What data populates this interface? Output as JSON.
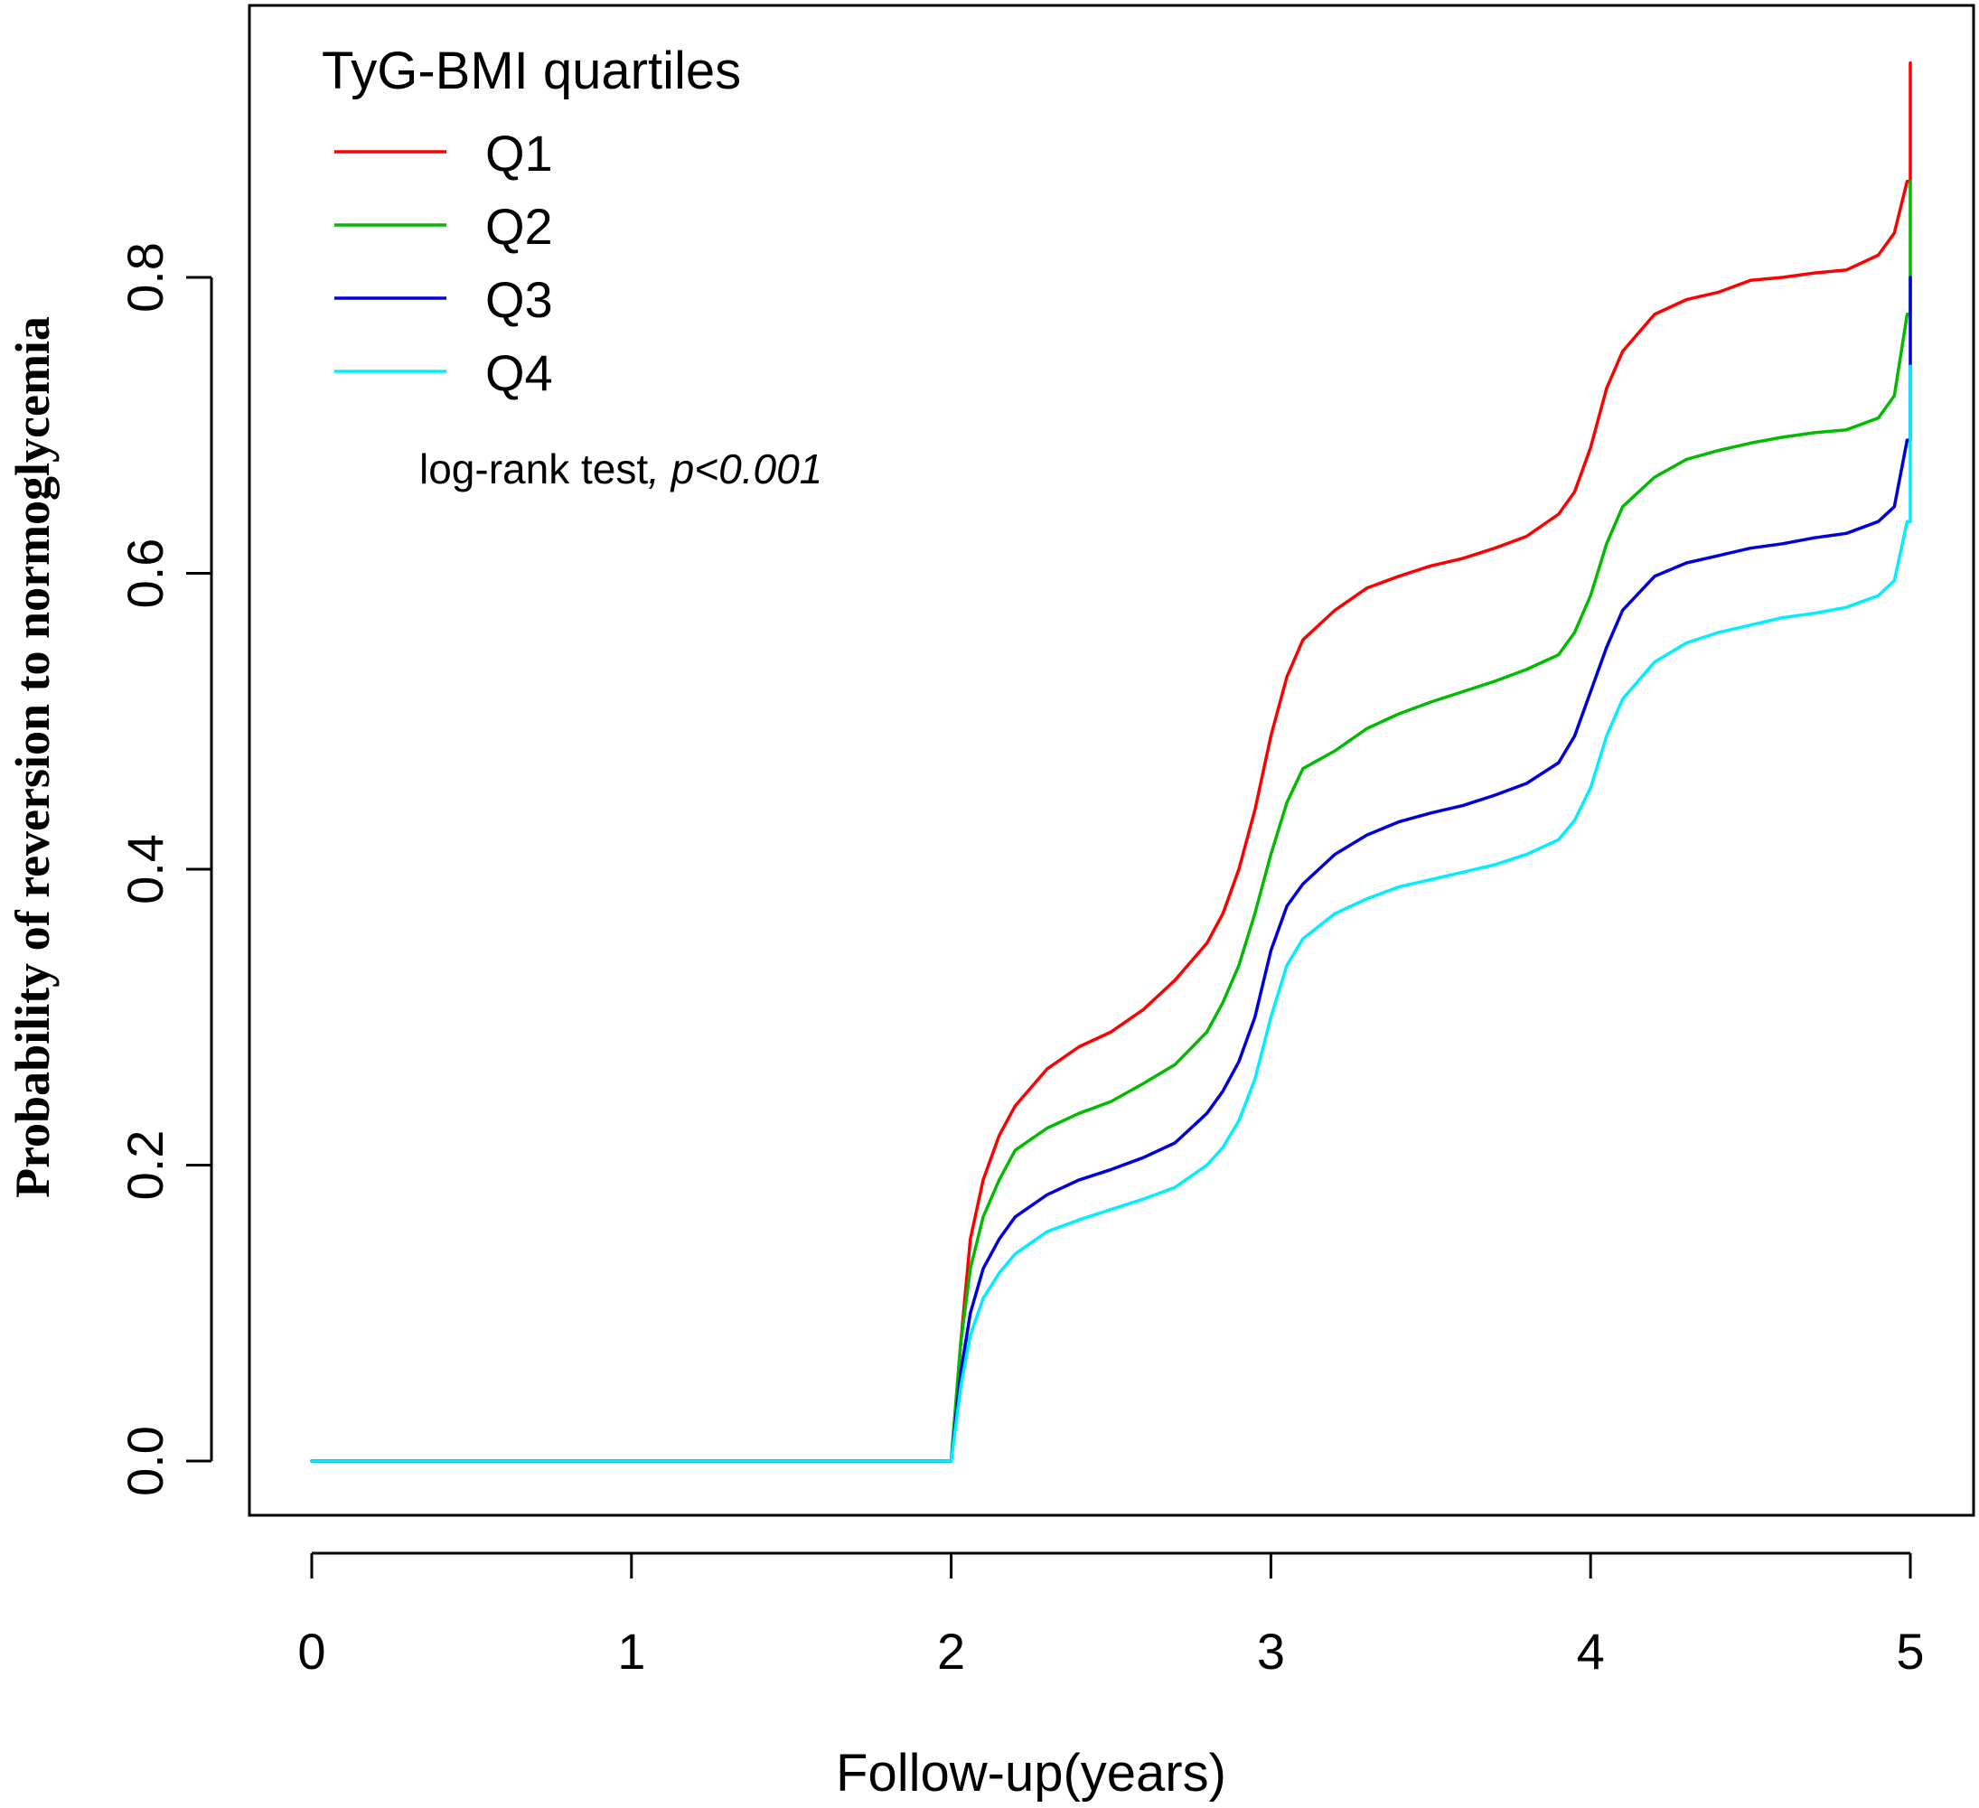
{
  "chart_data": {
    "type": "line",
    "title": "",
    "xlabel": "Follow-up(years)",
    "ylabel": "Probability of reversion to normoglycemia",
    "xlim": [
      0,
      5
    ],
    "ylim": [
      0,
      0.95
    ],
    "x_ticks": [
      "0",
      "1",
      "2",
      "3",
      "4",
      "5"
    ],
    "x_tick_values": [
      0,
      1,
      2,
      3,
      4,
      5
    ],
    "y_ticks": [
      "0.0",
      "0.2",
      "0.4",
      "0.6",
      "0.8"
    ],
    "y_tick_values": [
      0,
      0.2,
      0.4,
      0.6,
      0.8
    ],
    "grid": false,
    "legend": {
      "title": "TyG-BMI quartiles",
      "placement": "top-left"
    },
    "annotation": {
      "text": "log-rank test",
      "text_italic": ", p<0.001"
    },
    "series": [
      {
        "name": "Q1",
        "color": "#ff0000",
        "x": [
          0,
          1.99,
          2.0,
          2.03,
          2.06,
          2.1,
          2.15,
          2.2,
          2.3,
          2.4,
          2.5,
          2.6,
          2.7,
          2.8,
          2.85,
          2.9,
          2.95,
          3.0,
          3.05,
          3.1,
          3.2,
          3.3,
          3.4,
          3.5,
          3.6,
          3.7,
          3.8,
          3.9,
          3.95,
          4.0,
          4.05,
          4.1,
          4.2,
          4.3,
          4.4,
          4.5,
          4.6,
          4.7,
          4.8,
          4.9,
          4.95,
          4.99,
          5.0,
          5.0
        ],
        "y": [
          0,
          0,
          0.0,
          0.08,
          0.15,
          0.19,
          0.22,
          0.24,
          0.265,
          0.28,
          0.29,
          0.305,
          0.325,
          0.35,
          0.37,
          0.4,
          0.44,
          0.49,
          0.53,
          0.555,
          0.575,
          0.59,
          0.598,
          0.605,
          0.61,
          0.617,
          0.625,
          0.64,
          0.655,
          0.685,
          0.725,
          0.75,
          0.775,
          0.785,
          0.79,
          0.798,
          0.8,
          0.803,
          0.805,
          0.815,
          0.83,
          0.865,
          0.865,
          0.945
        ]
      },
      {
        "name": "Q2",
        "color": "#00bb00",
        "x": [
          0,
          1.99,
          2.0,
          2.03,
          2.06,
          2.1,
          2.15,
          2.2,
          2.3,
          2.4,
          2.5,
          2.6,
          2.7,
          2.8,
          2.85,
          2.9,
          2.95,
          3.0,
          3.05,
          3.1,
          3.2,
          3.3,
          3.4,
          3.5,
          3.6,
          3.7,
          3.8,
          3.9,
          3.95,
          4.0,
          4.05,
          4.1,
          4.2,
          4.3,
          4.4,
          4.5,
          4.6,
          4.7,
          4.8,
          4.9,
          4.95,
          4.99,
          5.0,
          5.0
        ],
        "y": [
          0,
          0,
          0.0,
          0.08,
          0.13,
          0.165,
          0.19,
          0.21,
          0.225,
          0.235,
          0.243,
          0.255,
          0.268,
          0.29,
          0.31,
          0.335,
          0.37,
          0.41,
          0.445,
          0.468,
          0.48,
          0.495,
          0.505,
          0.513,
          0.52,
          0.527,
          0.535,
          0.545,
          0.56,
          0.585,
          0.62,
          0.645,
          0.665,
          0.677,
          0.683,
          0.688,
          0.692,
          0.695,
          0.697,
          0.705,
          0.72,
          0.775,
          0.775,
          0.865
        ]
      },
      {
        "name": "Q3",
        "color": "#0000dd",
        "x": [
          0,
          1.99,
          2.0,
          2.03,
          2.06,
          2.1,
          2.15,
          2.2,
          2.3,
          2.4,
          2.5,
          2.6,
          2.7,
          2.8,
          2.85,
          2.9,
          2.95,
          3.0,
          3.05,
          3.1,
          3.2,
          3.3,
          3.4,
          3.5,
          3.6,
          3.7,
          3.8,
          3.9,
          3.95,
          4.0,
          4.05,
          4.1,
          4.2,
          4.3,
          4.4,
          4.5,
          4.6,
          4.7,
          4.8,
          4.9,
          4.95,
          4.99,
          5.0,
          5.0
        ],
        "y": [
          0,
          0,
          0.0,
          0.06,
          0.1,
          0.13,
          0.15,
          0.165,
          0.18,
          0.19,
          0.197,
          0.205,
          0.215,
          0.235,
          0.25,
          0.27,
          0.3,
          0.345,
          0.375,
          0.39,
          0.41,
          0.423,
          0.432,
          0.438,
          0.443,
          0.45,
          0.458,
          0.472,
          0.49,
          0.52,
          0.55,
          0.575,
          0.598,
          0.607,
          0.612,
          0.617,
          0.62,
          0.624,
          0.627,
          0.635,
          0.645,
          0.69,
          0.69,
          0.8
        ]
      },
      {
        "name": "Q4",
        "color": "#00eeff",
        "x": [
          0,
          1.99,
          2.0,
          2.03,
          2.06,
          2.1,
          2.15,
          2.2,
          2.3,
          2.4,
          2.5,
          2.6,
          2.7,
          2.8,
          2.85,
          2.9,
          2.95,
          3.0,
          3.05,
          3.1,
          3.2,
          3.3,
          3.4,
          3.5,
          3.6,
          3.7,
          3.8,
          3.9,
          3.95,
          4.0,
          4.05,
          4.1,
          4.2,
          4.3,
          4.4,
          4.5,
          4.6,
          4.7,
          4.8,
          4.9,
          4.95,
          4.99,
          5.0,
          5.0
        ],
        "y": [
          0,
          0,
          0.0,
          0.05,
          0.085,
          0.11,
          0.127,
          0.14,
          0.155,
          0.163,
          0.17,
          0.177,
          0.185,
          0.2,
          0.212,
          0.23,
          0.258,
          0.3,
          0.335,
          0.353,
          0.37,
          0.38,
          0.388,
          0.393,
          0.398,
          0.403,
          0.41,
          0.42,
          0.433,
          0.455,
          0.49,
          0.515,
          0.54,
          0.553,
          0.56,
          0.565,
          0.57,
          0.573,
          0.577,
          0.585,
          0.595,
          0.635,
          0.635,
          0.74
        ]
      }
    ]
  }
}
